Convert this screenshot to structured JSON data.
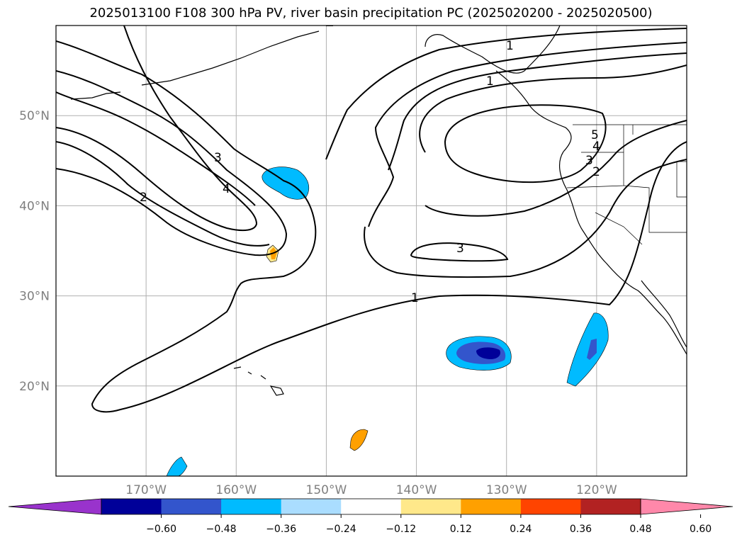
{
  "title": "2025013100 F108 300 hPa PV, river basin precipitation PC (2025020200 - 2025020500)",
  "map": {
    "lon_ticks": [
      {
        "value": -170,
        "label": "170°W"
      },
      {
        "value": -160,
        "label": "160°W"
      },
      {
        "value": -150,
        "label": "150°W"
      },
      {
        "value": -140,
        "label": "140°W"
      },
      {
        "value": -130,
        "label": "130°W"
      },
      {
        "value": -120,
        "label": "120°W"
      }
    ],
    "lat_ticks": [
      {
        "value": 20,
        "label": "20°N"
      },
      {
        "value": 30,
        "label": "30°N"
      },
      {
        "value": 40,
        "label": "40°N"
      },
      {
        "value": 50,
        "label": "50°N"
      }
    ],
    "grid": true,
    "pv_contour_labels": [
      "1",
      "2",
      "3",
      "4",
      "5",
      "1",
      "2",
      "3",
      "4",
      "3",
      "1"
    ]
  },
  "colorbar": {
    "ticks": [
      "−0.60",
      "−0.48",
      "−0.36",
      "−0.24",
      "−0.12",
      "0.12",
      "0.24",
      "0.36",
      "0.48",
      "0.60"
    ],
    "colors": [
      "#9933cc",
      "#000099",
      "#3355cc",
      "#00bbff",
      "#aaddff",
      "#ffffff",
      "#ffe88a",
      "#ffa000",
      "#ff4400",
      "#b22222",
      "#ff88aa"
    ]
  }
}
